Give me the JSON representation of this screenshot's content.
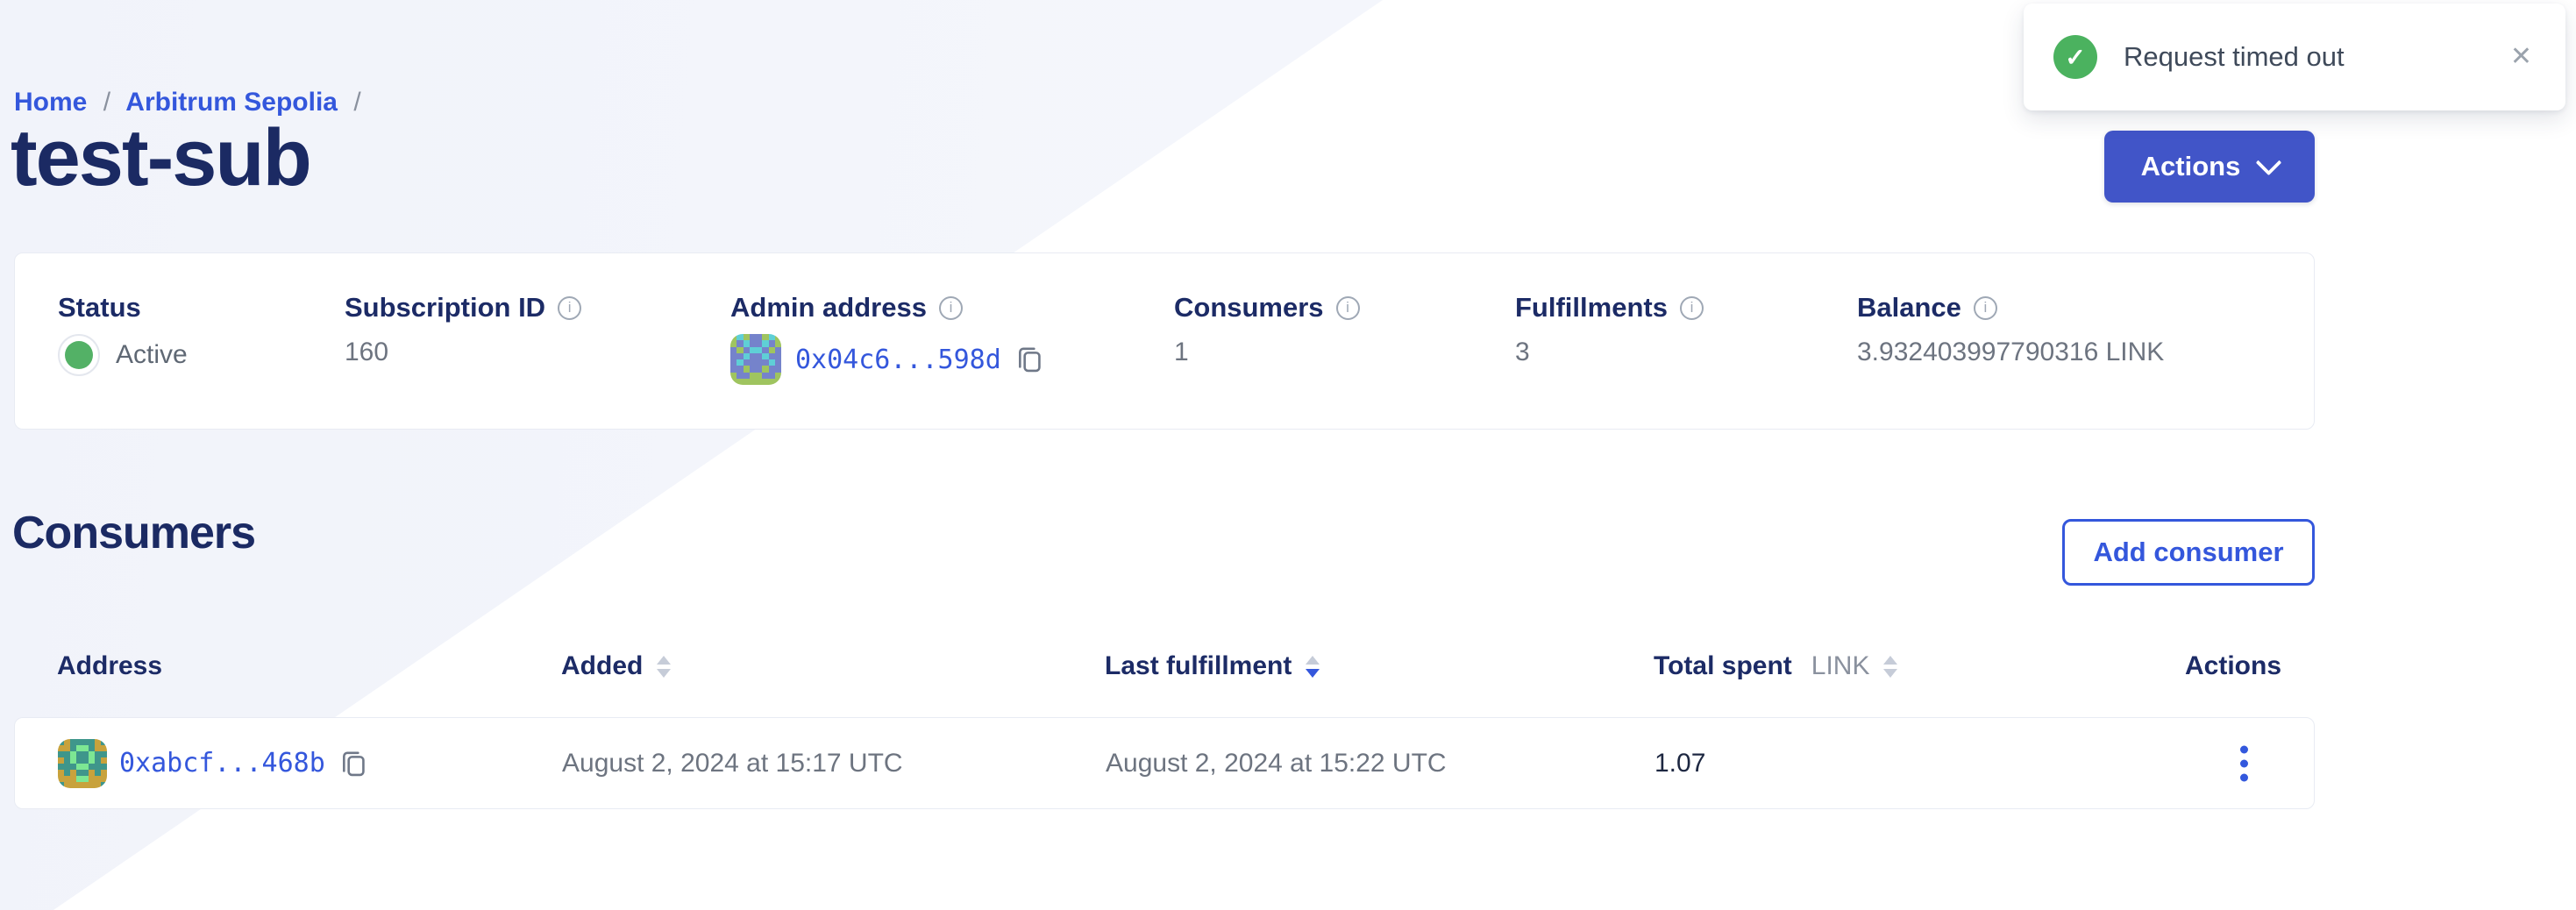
{
  "toast": {
    "message": "Request timed out"
  },
  "icons": {
    "check": "✓",
    "close": "✕",
    "info": "i"
  },
  "breadcrumb": {
    "home": "Home",
    "sep1": "/",
    "network": "Arbitrum Sepolia",
    "sep2": "/"
  },
  "header": {
    "title": "test-sub",
    "actions_label": "Actions"
  },
  "subscription_card": {
    "status": {
      "label": "Status",
      "value": "Active"
    },
    "subscription_id": {
      "label": "Subscription ID",
      "value": "160"
    },
    "admin_address": {
      "label": "Admin address",
      "value": "0x04c6...598d"
    },
    "consumers": {
      "label": "Consumers",
      "value": "1"
    },
    "fulfillments": {
      "label": "Fulfillments",
      "value": "3"
    },
    "balance": {
      "label": "Balance",
      "value": "3.932403997790316 LINK"
    }
  },
  "consumers_section": {
    "heading": "Consumers",
    "add_button_label": "Add consumer"
  },
  "table": {
    "headers": {
      "address": "Address",
      "added": "Added",
      "last_fulfillment": "Last fulfillment",
      "total_spent": "Total spent",
      "total_spent_unit": "LINK",
      "actions": "Actions"
    },
    "rows": [
      {
        "address": "0xabcf...468b",
        "added": "August 2, 2024 at 15:17 UTC",
        "last_fulfillment": "August 2, 2024 at 15:22 UTC",
        "total_spent": "1.07"
      }
    ]
  },
  "colors": {
    "brand_blue": "#3457dc",
    "button_blue": "#4155c8",
    "heading_navy": "#1b2a63",
    "success_green": "#4bb25f",
    "status_green": "#53b166",
    "text_gray": "#6d7480",
    "page_bg": "#f3f5fa"
  },
  "avatars": {
    "admin": {
      "palette": {
        "b": "#7583cb",
        "g": "#9fc45f",
        "t": "#5fcfd6"
      },
      "pattern": [
        "gtgbbgtg",
        "gbtbbtbg",
        "bgbttbgb",
        "bbtbbtbb",
        "btbbbbtb",
        "bbgbbgbb",
        "gbbggbbg",
        "gggggggg"
      ]
    },
    "consumer": {
      "palette": {
        "t": "#3f968b",
        "o": "#c8a23c",
        "g": "#7de793"
      },
      "pattern": [
        "tottttot",
        "ootggtoo",
        "ttgttgtt",
        "otgttgto",
        "tttggttt",
        "otottoto",
        "oooggooo",
        "toooooot"
      ]
    }
  }
}
